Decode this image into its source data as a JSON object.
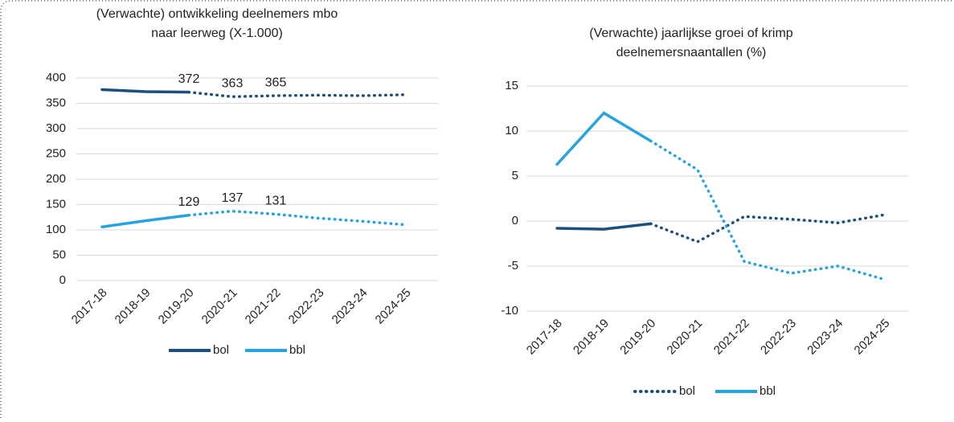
{
  "chart_data": [
    {
      "type": "line",
      "title": [
        "(Verwachte) ontwikkeling deelnemers mbo",
        "naar leerweg (X-1.000)"
      ],
      "categories": [
        "2017-18",
        "2018-19",
        "2019-20",
        "2020-21",
        "2021-22",
        "2022-23",
        "2023-24",
        "2024-25"
      ],
      "dotted_from": "2019-20",
      "ylim": [
        0,
        400
      ],
      "yticks": [
        0,
        50,
        100,
        150,
        200,
        250,
        300,
        350,
        400
      ],
      "grid": true,
      "series": [
        {
          "name": "bol",
          "color": "#1b4f7e",
          "legend_style": "solid",
          "values": [
            377,
            373,
            372,
            363,
            365,
            366,
            365,
            367
          ],
          "value_labels": [
            null,
            null,
            "372",
            "363",
            "365",
            null,
            null,
            null
          ]
        },
        {
          "name": "bbl",
          "color": "#28a3e0",
          "legend_style": "solid",
          "values": [
            106,
            118,
            129,
            137,
            131,
            123,
            117,
            110
          ],
          "value_labels": [
            null,
            null,
            "129",
            "137",
            "131",
            null,
            null,
            null
          ]
        }
      ]
    },
    {
      "type": "line",
      "title": [
        "(Verwachte) jaarlijkse groei of krimp",
        "deelnemersnaantallen (%)"
      ],
      "categories": [
        "2017-18",
        "2018-19",
        "2019-20",
        "2020-21",
        "2021-22",
        "2022-23",
        "2023-24",
        "2024-25"
      ],
      "dotted_from": "2019-20",
      "ylim": [
        -10,
        15
      ],
      "yticks": [
        -10,
        -5,
        0,
        5,
        10,
        15
      ],
      "grid": true,
      "series": [
        {
          "name": "bol",
          "color": "#1b4f7e",
          "legend_style": "dotted",
          "values": [
            -0.8,
            -0.9,
            -0.3,
            -2.3,
            0.5,
            0.2,
            -0.2,
            0.7
          ]
        },
        {
          "name": "bbl",
          "color": "#28a3e0",
          "legend_style": "solid",
          "values": [
            6.3,
            12,
            8.9,
            5.7,
            -4.5,
            -5.8,
            -5,
            -6.5
          ]
        }
      ]
    }
  ]
}
